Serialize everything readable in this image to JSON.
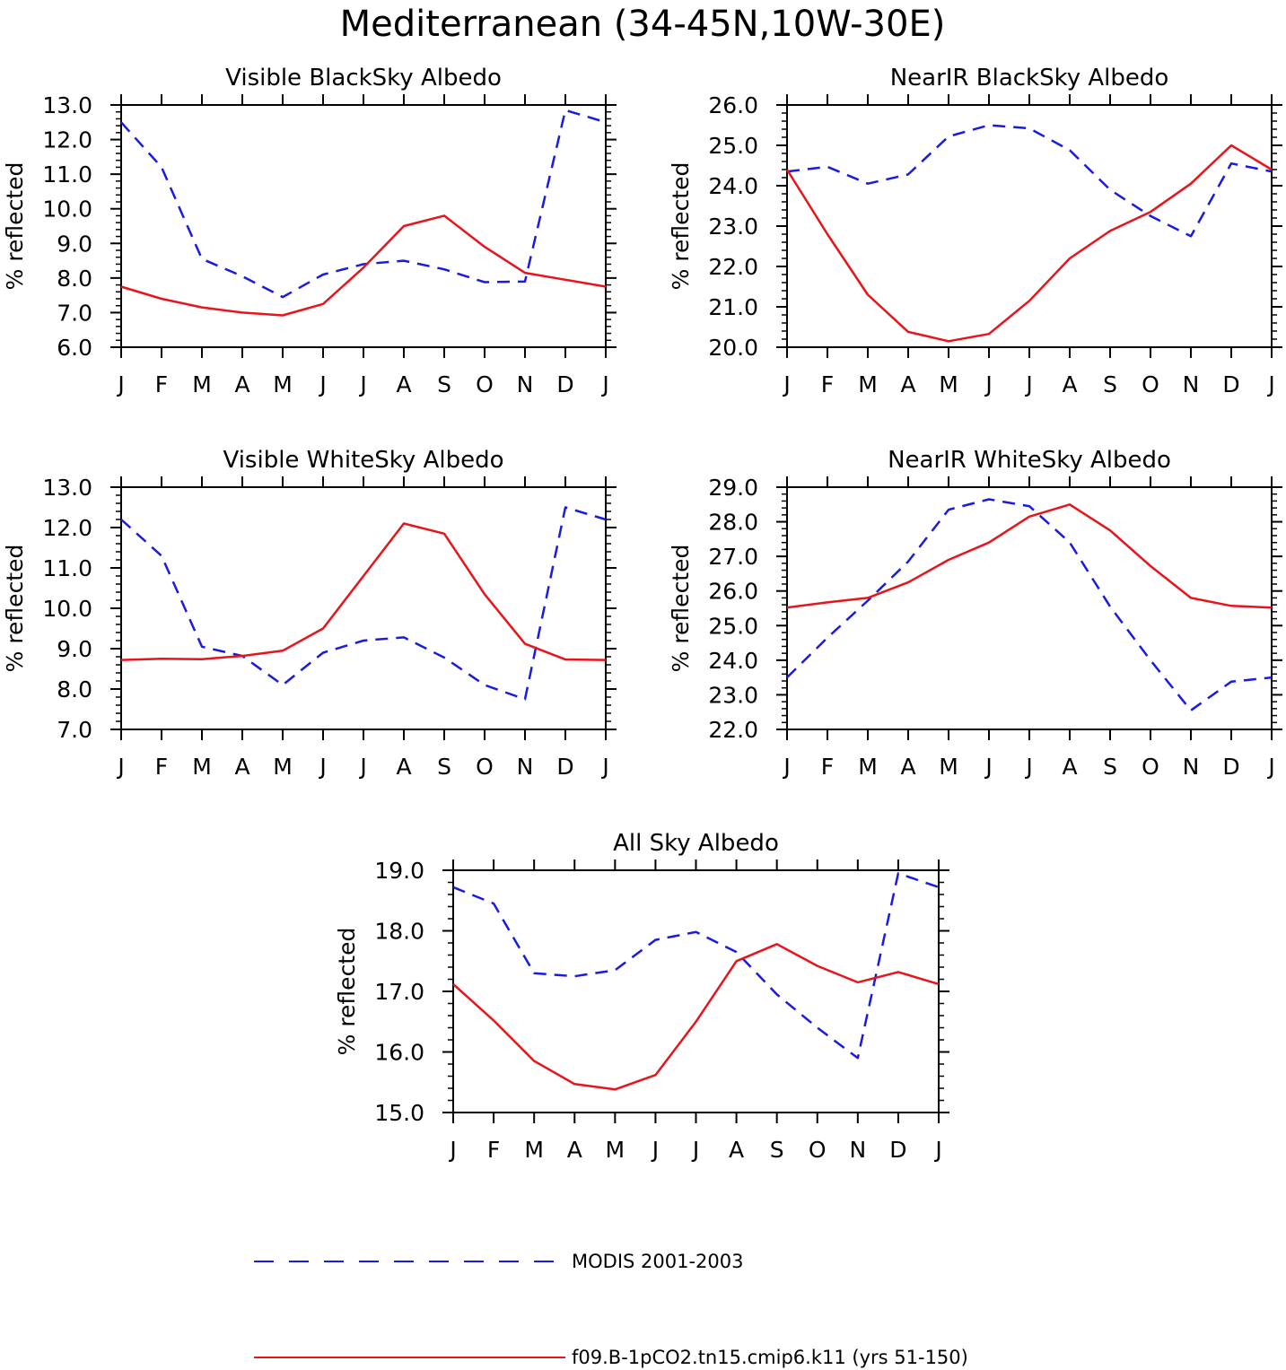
{
  "figure_title": "Mediterranean (34-45N,10W-30E)",
  "colors": {
    "model": "#e8141c",
    "obs": "#1a1ae0",
    "axes": "#000000"
  },
  "legend": {
    "placement": "bottom",
    "obs_label": "MODIS 2001-2003",
    "model_label": "f09.B-1pCO2.tn15.cmip6.k11 (yrs 51-150)"
  },
  "chart_data": [
    {
      "type": "line",
      "title": "Visible BlackSky Albedo",
      "ylabel": "% reflected",
      "ylim": [
        6.0,
        13.0
      ],
      "yticks": [
        "6.0",
        "7.0",
        "8.0",
        "9.0",
        "10.0",
        "11.0",
        "12.0",
        "13.0"
      ],
      "categories": [
        "J",
        "F",
        "M",
        "A",
        "M",
        "J",
        "J",
        "A",
        "S",
        "O",
        "N",
        "D",
        "J"
      ],
      "series": [
        {
          "name": "MODIS 2001-2003",
          "style": "dashed",
          "values": [
            12.5,
            11.2,
            8.55,
            8.05,
            7.45,
            8.1,
            8.4,
            8.5,
            8.25,
            7.88,
            7.9,
            12.85,
            12.5
          ]
        },
        {
          "name": "f09.B-1pCO2.tn15.cmip6.k11 (yrs 51-150)",
          "style": "solid",
          "values": [
            7.75,
            7.4,
            7.15,
            7.0,
            6.92,
            7.25,
            8.3,
            9.5,
            9.8,
            8.9,
            8.15,
            7.95,
            7.75
          ]
        }
      ]
    },
    {
      "type": "line",
      "title": "NearIR BlackSky Albedo",
      "ylabel": "% reflected",
      "ylim": [
        20.0,
        26.0
      ],
      "yticks": [
        "20.0",
        "21.0",
        "22.0",
        "23.0",
        "24.0",
        "25.0",
        "26.0"
      ],
      "categories": [
        "J",
        "F",
        "M",
        "A",
        "M",
        "J",
        "J",
        "A",
        "S",
        "O",
        "N",
        "D",
        "J"
      ],
      "series": [
        {
          "name": "MODIS 2001-2003",
          "style": "dashed",
          "values": [
            24.35,
            24.47,
            24.05,
            24.28,
            25.22,
            25.5,
            25.42,
            24.88,
            23.9,
            23.25,
            22.75,
            24.55,
            24.35
          ]
        },
        {
          "name": "f09.B-1pCO2.tn15.cmip6.k11 (yrs 51-150)",
          "style": "solid",
          "values": [
            24.4,
            22.8,
            21.3,
            20.38,
            20.15,
            20.33,
            21.15,
            22.2,
            22.88,
            23.35,
            24.05,
            25.0,
            24.4
          ]
        }
      ]
    },
    {
      "type": "line",
      "title": "Visible WhiteSky Albedo",
      "ylabel": "% reflected",
      "ylim": [
        7.0,
        13.0
      ],
      "yticks": [
        "7.0",
        "8.0",
        "9.0",
        "10.0",
        "11.0",
        "12.0",
        "13.0"
      ],
      "categories": [
        "J",
        "F",
        "M",
        "A",
        "M",
        "J",
        "J",
        "A",
        "S",
        "O",
        "N",
        "D",
        "J"
      ],
      "series": [
        {
          "name": "MODIS 2001-2003",
          "style": "dashed",
          "values": [
            12.2,
            11.3,
            9.05,
            8.82,
            8.1,
            8.9,
            9.2,
            9.28,
            8.78,
            8.1,
            7.75,
            12.5,
            12.2
          ]
        },
        {
          "name": "f09.B-1pCO2.tn15.cmip6.k11 (yrs 51-150)",
          "style": "solid",
          "values": [
            8.72,
            8.75,
            8.74,
            8.82,
            8.95,
            9.5,
            10.8,
            12.1,
            11.85,
            10.35,
            9.12,
            8.73,
            8.72
          ]
        }
      ]
    },
    {
      "type": "line",
      "title": "NearIR WhiteSky Albedo",
      "ylabel": "% reflected",
      "ylim": [
        22.0,
        29.0
      ],
      "yticks": [
        "22.0",
        "23.0",
        "24.0",
        "25.0",
        "26.0",
        "27.0",
        "28.0",
        "29.0"
      ],
      "categories": [
        "J",
        "F",
        "M",
        "A",
        "M",
        "J",
        "J",
        "A",
        "S",
        "O",
        "N",
        "D",
        "J"
      ],
      "series": [
        {
          "name": "MODIS 2001-2003",
          "style": "dashed",
          "values": [
            23.5,
            24.65,
            25.72,
            26.85,
            28.35,
            28.65,
            28.45,
            27.4,
            25.55,
            24.0,
            22.55,
            23.38,
            23.5
          ]
        },
        {
          "name": "f09.B-1pCO2.tn15.cmip6.k11 (yrs 51-150)",
          "style": "solid",
          "values": [
            25.52,
            25.67,
            25.8,
            26.25,
            26.9,
            27.4,
            28.15,
            28.5,
            27.75,
            26.72,
            25.8,
            25.57,
            25.52
          ]
        }
      ]
    },
    {
      "type": "line",
      "title": "All Sky Albedo",
      "ylabel": "% reflected",
      "ylim": [
        15.0,
        19.0
      ],
      "yticks": [
        "15.0",
        "16.0",
        "17.0",
        "18.0",
        "19.0"
      ],
      "categories": [
        "J",
        "F",
        "M",
        "A",
        "M",
        "J",
        "J",
        "A",
        "S",
        "O",
        "N",
        "D",
        "J"
      ],
      "series": [
        {
          "name": "MODIS 2001-2003",
          "style": "dashed",
          "values": [
            18.72,
            18.45,
            17.3,
            17.25,
            17.35,
            17.85,
            17.98,
            17.65,
            16.95,
            16.4,
            15.9,
            18.95,
            18.72
          ]
        },
        {
          "name": "f09.B-1pCO2.tn15.cmip6.k11 (yrs 51-150)",
          "style": "solid",
          "values": [
            17.12,
            16.52,
            15.85,
            15.47,
            15.38,
            15.62,
            16.5,
            17.5,
            17.78,
            17.42,
            17.15,
            17.32,
            17.12
          ]
        }
      ]
    }
  ]
}
